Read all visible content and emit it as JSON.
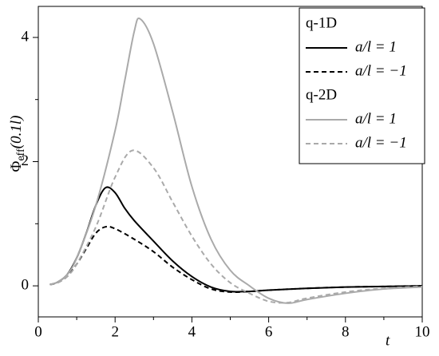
{
  "chart_data": {
    "type": "line",
    "y_label": {
      "symbol": "Φ",
      "subscript": "eff",
      "argument": "(0.1l)"
    },
    "x_label": "t",
    "xlim": [
      0,
      10
    ],
    "xticks": [
      0,
      2,
      4,
      6,
      8,
      10
    ],
    "x_minor_ticks": [
      1,
      3,
      5,
      7,
      9
    ],
    "ylim": [
      -0.5,
      4.5
    ],
    "yticks": [
      0,
      2,
      4
    ],
    "y_minor_ticks": [
      1,
      3
    ],
    "legend_titles": [
      "q-1D",
      "q-2D"
    ],
    "legend_position": "upper right",
    "series": [
      {
        "name": "a/l = 1",
        "color": "#000000",
        "dash": "solid",
        "x": [
          0.3,
          0.5,
          0.75,
          1,
          1.25,
          1.5,
          1.75,
          2,
          2.25,
          2.5,
          3,
          3.5,
          4,
          4.5,
          5,
          5.5,
          6,
          7,
          8,
          9,
          10
        ],
        "values": [
          0.02,
          0.06,
          0.18,
          0.45,
          0.85,
          1.3,
          1.58,
          1.5,
          1.25,
          1.05,
          0.72,
          0.4,
          0.15,
          -0.02,
          -0.09,
          -0.09,
          -0.07,
          -0.04,
          -0.02,
          -0.01,
          0
        ]
      },
      {
        "name": "a/l = −1",
        "color": "#000000",
        "dash": "dashed",
        "x": [
          0.3,
          0.5,
          0.75,
          1,
          1.25,
          1.5,
          1.75,
          2,
          2.5,
          3,
          3.5,
          4,
          4.5,
          5,
          5.5,
          6,
          7,
          8,
          9,
          10
        ],
        "values": [
          0.02,
          0.05,
          0.15,
          0.35,
          0.6,
          0.85,
          0.95,
          0.92,
          0.75,
          0.55,
          0.3,
          0.1,
          -0.05,
          -0.1,
          -0.09,
          -0.07,
          -0.04,
          -0.02,
          -0.01,
          0
        ]
      },
      {
        "name": "a/l = 1",
        "color": "#aaaaaa",
        "dash": "solid",
        "x": [
          0.3,
          0.5,
          0.75,
          1,
          1.5,
          2,
          2.25,
          2.5,
          2.65,
          3,
          3.5,
          4,
          4.5,
          5,
          5.5,
          6,
          6.5,
          7,
          8,
          9,
          10
        ],
        "values": [
          0.02,
          0.06,
          0.18,
          0.45,
          1.3,
          2.5,
          3.3,
          4.1,
          4.3,
          3.9,
          2.8,
          1.6,
          0.75,
          0.25,
          0,
          -0.2,
          -0.28,
          -0.22,
          -0.12,
          -0.05,
          -0.02
        ]
      },
      {
        "name": "a/l = −1",
        "color": "#aaaaaa",
        "dash": "dashed",
        "x": [
          0.3,
          0.5,
          0.75,
          1,
          1.5,
          2,
          2.45,
          3,
          3.5,
          4,
          4.5,
          5,
          5.5,
          6,
          6.5,
          7,
          8,
          9,
          10
        ],
        "values": [
          0.02,
          0.05,
          0.15,
          0.35,
          0.95,
          1.75,
          2.18,
          1.9,
          1.35,
          0.8,
          0.35,
          0.05,
          -0.12,
          -0.25,
          -0.27,
          -0.2,
          -0.1,
          -0.04,
          -0.01
        ]
      }
    ]
  }
}
